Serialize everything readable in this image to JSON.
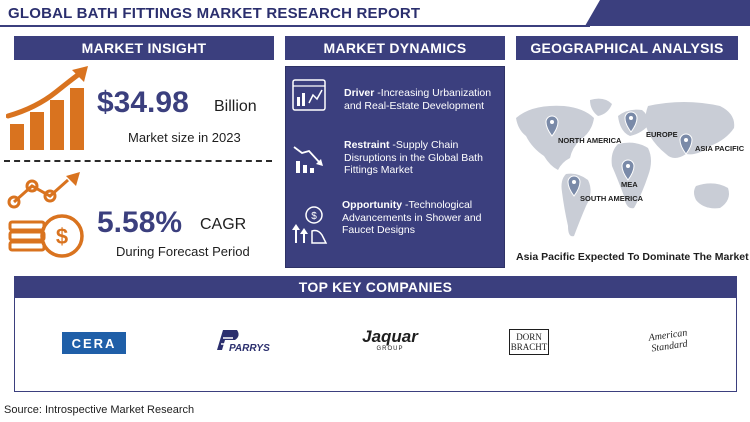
{
  "report_title": "GLOBAL BATH FITTINGS MARKET RESEARCH  REPORT",
  "sections": {
    "market_insight": "MARKET INSIGHT",
    "market_dynamics": "MARKET DYNAMICS",
    "geographical_analysis": "GEOGRAPHICAL ANALYSIS",
    "top_key_companies": "TOP KEY COMPANIES"
  },
  "market_size": {
    "value": "$34.98",
    "unit": "Billion",
    "caption": "Market size in 2023"
  },
  "cagr": {
    "value": "5.58%",
    "unit": "CAGR",
    "caption": "During Forecast Period"
  },
  "dynamics": [
    {
      "label": "Driver",
      "text": " -Increasing Urbanization and Real-Estate Development",
      "icon": "analytics-dashboard-icon"
    },
    {
      "label": "Restraint",
      "text": " -Supply Chain Disruptions in the Global Bath Fittings Market",
      "icon": "declining-chart-icon"
    },
    {
      "label": "Opportunity",
      "text": " -Technological Advancements in Shower and Faucet Designs",
      "icon": "growth-idea-icon"
    }
  ],
  "map_regions": [
    {
      "name": "NORTH AMERICA"
    },
    {
      "name": "EUROPE"
    },
    {
      "name": "ASIA PACIFIC"
    },
    {
      "name": "MEA"
    },
    {
      "name": "SOUTH AMERICA"
    }
  ],
  "geo_caption": "Asia Pacific Expected To Dominate The Market",
  "companies": [
    {
      "name": "CERA"
    },
    {
      "name": "PARRYS"
    },
    {
      "name": "Jaquar",
      "sub": "GROUP"
    },
    {
      "name_line1": "DORN",
      "name_line2": "BRACHT"
    },
    {
      "name_line1": "American",
      "name_line2": "Standard"
    }
  ],
  "source": "Source: Introspective Market Research",
  "colors": {
    "navy": "#3b3f7e",
    "orange": "#d9731f",
    "map_gray": "#c9cdd6",
    "pin": "#7a8aa8"
  }
}
